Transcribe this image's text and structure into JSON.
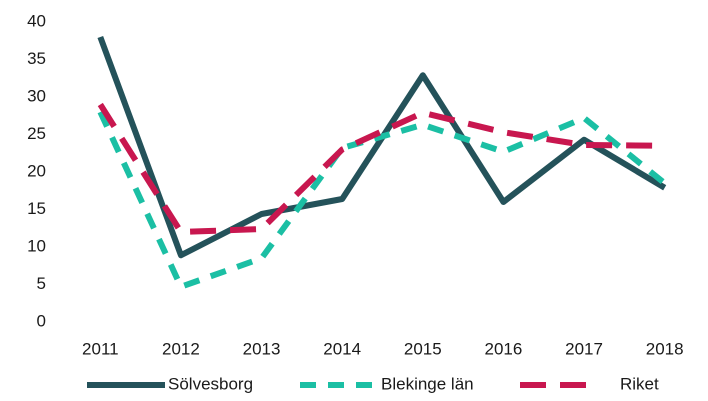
{
  "chart_data": {
    "type": "line",
    "categories": [
      "2011",
      "2012",
      "2013",
      "2014",
      "2015",
      "2016",
      "2017",
      "2018"
    ],
    "series": [
      {
        "name": "Sölvesborg",
        "color": "#24525a",
        "values": [
          38,
          8.9,
          14.4,
          16.4,
          32.9,
          16,
          24.3,
          17.9
        ]
      },
      {
        "name": "Blekinge län",
        "color": "#1bbfa4",
        "values": [
          28,
          4.7,
          8.5,
          23.2,
          26.3,
          22.7,
          27.2,
          18.5
        ]
      },
      {
        "name": "Riket",
        "color": "#c8174f",
        "values": [
          29,
          12,
          12.4,
          23,
          27.9,
          25.3,
          23.6,
          23.5
        ]
      }
    ],
    "ylim": [
      0,
      40
    ],
    "yticks": [
      0,
      5,
      10,
      15,
      20,
      25,
      30,
      35,
      40
    ],
    "grid": false,
    "legend": "bottom"
  }
}
